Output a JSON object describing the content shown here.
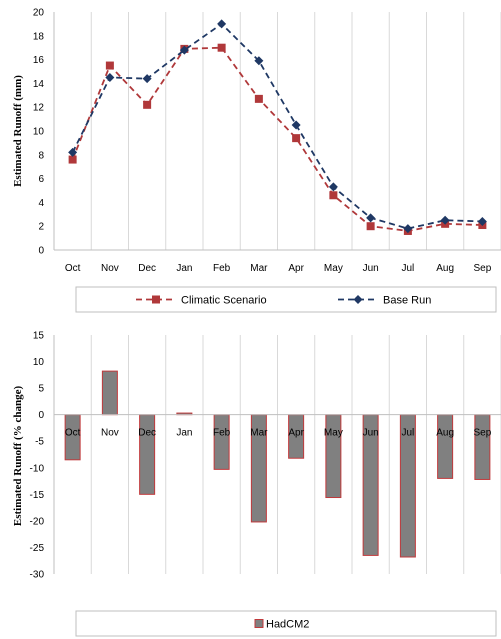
{
  "chart_data": [
    {
      "type": "line",
      "title": "",
      "xlabel": "",
      "ylabel": "Estimated Runoff (mm)",
      "ylim": [
        0,
        20
      ],
      "ystep": 2,
      "grid": "vertical",
      "legend": "bottom",
      "categories": [
        "Oct",
        "Nov",
        "Dec",
        "Jan",
        "Feb",
        "Mar",
        "Apr",
        "May",
        "Jun",
        "Jul",
        "Aug",
        "Sep"
      ],
      "y_ticks": [
        "0",
        "2",
        "4",
        "6",
        "8",
        "10",
        "12",
        "14",
        "16",
        "18",
        "20"
      ],
      "series": [
        {
          "name": "Climatic Scenario",
          "color": "#b0383a",
          "marker": "square",
          "values": [
            7.6,
            15.5,
            12.2,
            16.9,
            17.0,
            12.7,
            9.4,
            4.6,
            2.0,
            1.6,
            2.2,
            2.1
          ]
        },
        {
          "name": "Base Run",
          "color": "#1f3864",
          "marker": "diamond",
          "values": [
            8.2,
            14.5,
            14.4,
            16.8,
            19.0,
            15.9,
            10.5,
            5.3,
            2.7,
            1.8,
            2.5,
            2.4
          ]
        }
      ]
    },
    {
      "type": "bar",
      "title": "",
      "xlabel": "",
      "ylabel": "Estimated Runoff (% change)",
      "ylim": [
        -30,
        15
      ],
      "ystep": 5,
      "grid": "vertical",
      "legend": "bottom",
      "categories": [
        "Oct",
        "Nov",
        "Dec",
        "Jan",
        "Feb",
        "Mar",
        "Apr",
        "May",
        "Jun",
        "Jul",
        "Aug",
        "Sep"
      ],
      "y_ticks": [
        "-30",
        "-25",
        "-20",
        "-15",
        "-10",
        "-5",
        "0",
        "5",
        "10",
        "15"
      ],
      "series": [
        {
          "name": "HadCM2",
          "fill": "#808080",
          "stroke": "#c0393b",
          "values": [
            -8.5,
            8.2,
            -15.0,
            0.3,
            -10.3,
            -20.2,
            -8.2,
            -15.6,
            -26.5,
            -26.8,
            -12.0,
            -12.2
          ]
        }
      ]
    }
  ]
}
